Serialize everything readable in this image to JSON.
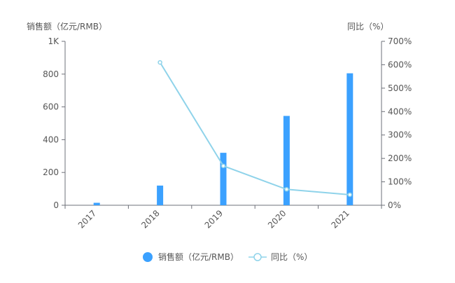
{
  "chart_data": {
    "type": "bar",
    "categories": [
      "2017",
      "2018",
      "2019",
      "2020",
      "2021"
    ],
    "series": [
      {
        "name": "销售额（亿元/RMB）",
        "type": "bar",
        "axis": "left",
        "color": "#3ba1ff",
        "values": [
          15,
          120,
          320,
          545,
          805
        ]
      },
      {
        "name": "同比（%）",
        "type": "line",
        "axis": "right",
        "color": "#8fd3ea",
        "values": [
          null,
          610,
          168,
          68,
          45
        ]
      }
    ],
    "ylabel_left": "销售额（亿元/RMB）",
    "ylabel_right": "同比（%）",
    "ylim_left": [
      0,
      1000
    ],
    "ylim_right": [
      0,
      700
    ],
    "yticks_left": [
      {
        "value": 0,
        "label": "0"
      },
      {
        "value": 200,
        "label": "200"
      },
      {
        "value": 400,
        "label": "400"
      },
      {
        "value": 600,
        "label": "600"
      },
      {
        "value": 800,
        "label": "800"
      },
      {
        "value": 1000,
        "label": "1K"
      }
    ],
    "yticks_right": [
      {
        "value": 0,
        "label": "0%"
      },
      {
        "value": 100,
        "label": "100%"
      },
      {
        "value": 200,
        "label": "200%"
      },
      {
        "value": 300,
        "label": "300%"
      },
      {
        "value": 400,
        "label": "400%"
      },
      {
        "value": 500,
        "label": "500%"
      },
      {
        "value": 600,
        "label": "600%"
      },
      {
        "value": 700,
        "label": "700%"
      }
    ],
    "grid": false,
    "legend_position": "bottom-center"
  }
}
